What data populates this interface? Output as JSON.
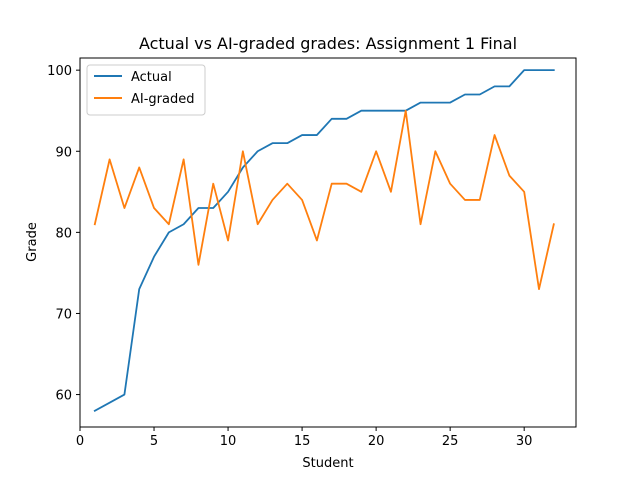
{
  "chart_data": {
    "type": "line",
    "title": "Actual vs AI-graded grades: Assignment 1 Final",
    "xlabel": "Student",
    "ylabel": "Grade",
    "x": [
      1,
      2,
      3,
      4,
      5,
      6,
      7,
      8,
      9,
      10,
      11,
      12,
      13,
      14,
      15,
      16,
      17,
      18,
      19,
      20,
      21,
      22,
      23,
      24,
      25,
      26,
      27,
      28,
      29,
      30,
      31,
      32
    ],
    "xlim": [
      0,
      33.5
    ],
    "ylim": [
      56,
      101.5
    ],
    "xticks": [
      0,
      5,
      10,
      15,
      20,
      25,
      30
    ],
    "yticks": [
      60,
      70,
      80,
      90,
      100
    ],
    "grid": false,
    "legend_position": "upper-left",
    "series": [
      {
        "name": "Actual",
        "color": "#1f77b4",
        "values": [
          58,
          59,
          60,
          73,
          77,
          80,
          81,
          83,
          83,
          85,
          88,
          90,
          91,
          91,
          92,
          92,
          94,
          94,
          95,
          95,
          95,
          95,
          96,
          96,
          96,
          97,
          97,
          98,
          98,
          100,
          100,
          100
        ]
      },
      {
        "name": "AI-graded",
        "color": "#ff7f0e",
        "values": [
          81,
          89,
          83,
          88,
          83,
          81,
          89,
          76,
          86,
          79,
          90,
          81,
          84,
          86,
          84,
          79,
          86,
          86,
          85,
          90,
          85,
          95,
          81,
          90,
          86,
          84,
          84,
          92,
          87,
          85,
          73,
          81
        ]
      }
    ]
  }
}
